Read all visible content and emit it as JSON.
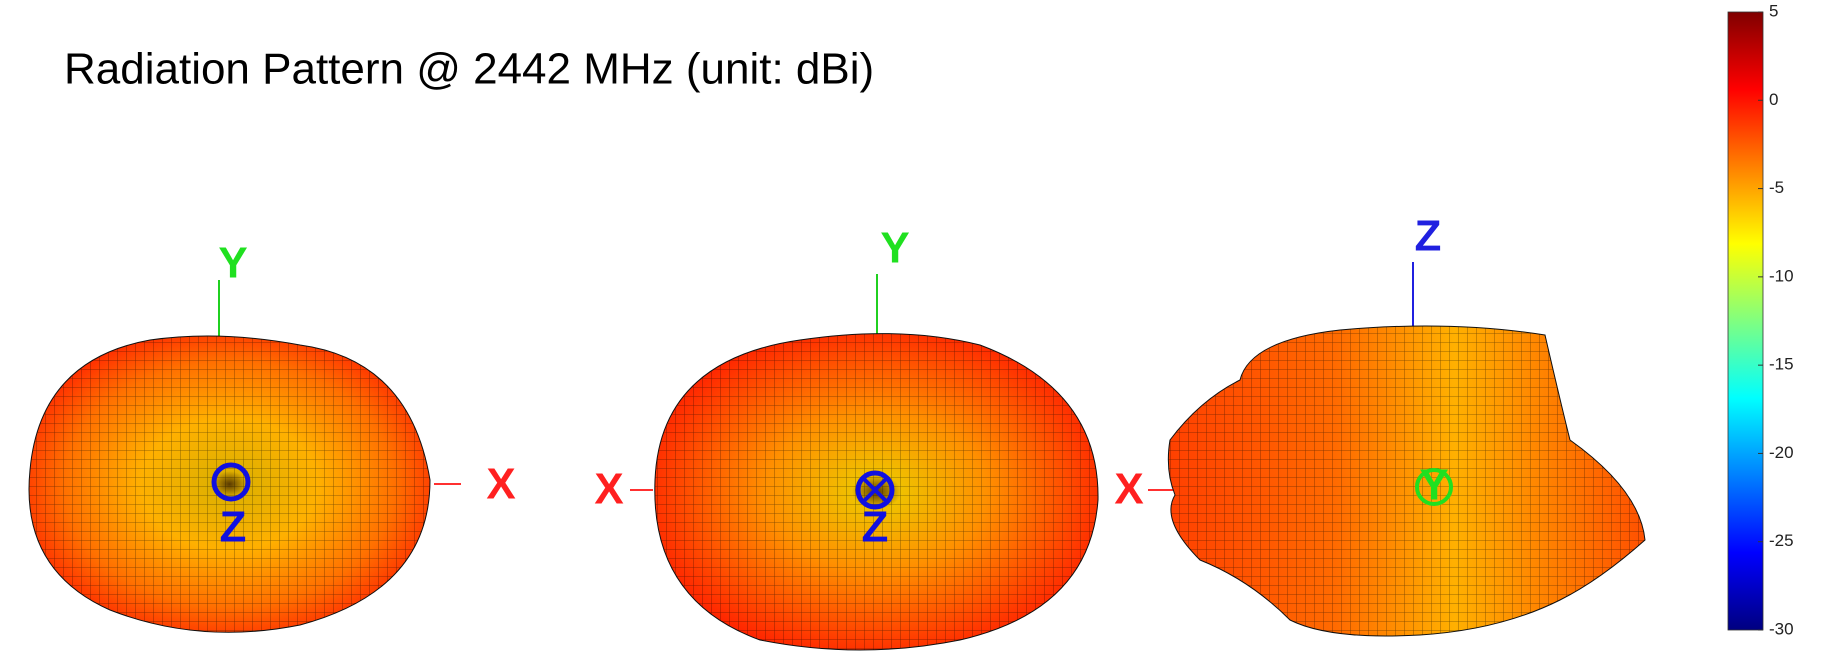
{
  "chart_data": {
    "type": "surface3d",
    "title": "Radiation Pattern @ 2442 MHz (unit: dBi)",
    "colorbar": {
      "lim": [
        -30,
        5
      ],
      "ticks": [
        5,
        0,
        -5,
        -10,
        -15,
        -20,
        -25,
        -30
      ],
      "colormap": [
        "#800000",
        "#ff0000",
        "#ff8000",
        "#ffff00",
        "#80ff80",
        "#00ffff",
        "#0080ff",
        "#0000ff",
        "#000080"
      ]
    },
    "views": [
      {
        "axes": {
          "vertical": "Y",
          "horizontal": "X",
          "depth": "Z"
        }
      },
      {
        "axes": {
          "vertical": "Y",
          "horizontal": "X",
          "depth": "Z"
        }
      },
      {
        "axes": {
          "vertical": "Z",
          "horizontal": "X",
          "depth": "Y"
        }
      }
    ]
  }
}
